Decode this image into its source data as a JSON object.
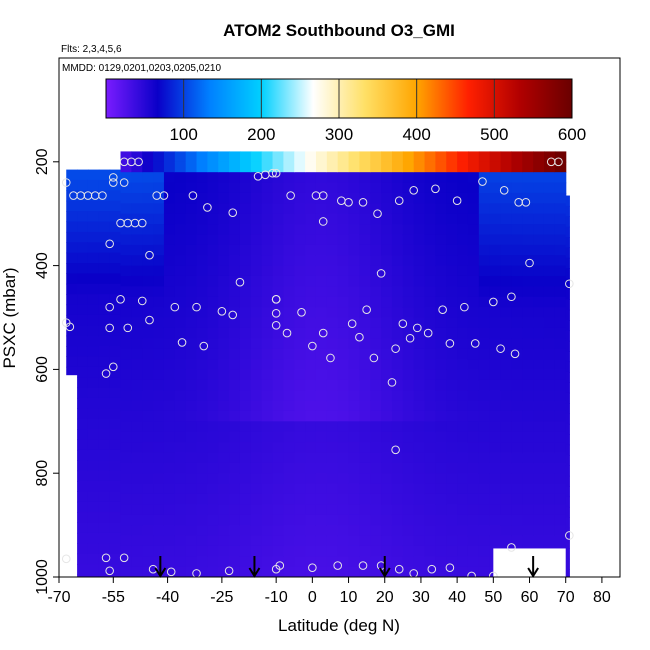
{
  "chart_data": {
    "type": "heatmap",
    "title": "ATOM2 Southbound O3_GMI",
    "subtitle_flights": "Flts: 2,3,4,5,6",
    "subtitle_dates": "MMDD: 0129,0201,0203,0205,0210",
    "xlabel": "Latitude (deg N)",
    "ylabel": "PSXC (mbar)",
    "xlim": [
      -70,
      85
    ],
    "ylim": [
      1000,
      0
    ],
    "x_ticks": [
      -70,
      -55,
      -40,
      -25,
      -10,
      0,
      10,
      20,
      30,
      40,
      50,
      60,
      70,
      80
    ],
    "x_tick_labels": [
      "-70",
      "-55",
      "-40",
      "-25",
      "-10",
      "0",
      "10",
      "20",
      "30",
      "40",
      "50",
      "60",
      "70",
      "80"
    ],
    "y_ticks": [
      200,
      400,
      600,
      800,
      1000
    ],
    "y_tick_labels": [
      "200",
      "400",
      "600",
      "800",
      "1000"
    ],
    "colorbar": {
      "min": 0,
      "max": 600,
      "ticks": [
        100,
        200,
        300,
        400,
        500,
        600
      ],
      "tick_labels": [
        "100",
        "200",
        "300",
        "400",
        "500",
        "600"
      ],
      "colors": [
        "#7a1cff",
        "#0a00c8",
        "#0080ff",
        "#00d0ff",
        "#ffffff",
        "#ffe066",
        "#ffa500",
        "#ff2000",
        "#b00000",
        "#6a0000"
      ]
    },
    "curtain": {
      "lat_start": -68,
      "lat_end": 71,
      "p_top": 180,
      "p_bottom": 1000,
      "grid_lat_step": 3,
      "grid_p_step": 20
    },
    "flight_arrows_lat": [
      -42,
      -16,
      20,
      61
    ],
    "observation_points": [
      {
        "lat": -68,
        "p": 240
      },
      {
        "lat": -66,
        "p": 265
      },
      {
        "lat": -64,
        "p": 265
      },
      {
        "lat": -62,
        "p": 265
      },
      {
        "lat": -60,
        "p": 265
      },
      {
        "lat": -58,
        "p": 265
      },
      {
        "lat": -55,
        "p": 240
      },
      {
        "lat": -55,
        "p": 230
      },
      {
        "lat": -52,
        "p": 200
      },
      {
        "lat": -50,
        "p": 200
      },
      {
        "lat": -48,
        "p": 200
      },
      {
        "lat": -52,
        "p": 240
      },
      {
        "lat": -43,
        "p": 265
      },
      {
        "lat": -41,
        "p": 265
      },
      {
        "lat": -33,
        "p": 265
      },
      {
        "lat": -29,
        "p": 288
      },
      {
        "lat": -22,
        "p": 298
      },
      {
        "lat": -15,
        "p": 228
      },
      {
        "lat": -13,
        "p": 225
      },
      {
        "lat": -11,
        "p": 222
      },
      {
        "lat": -10,
        "p": 222
      },
      {
        "lat": -6,
        "p": 265
      },
      {
        "lat": 1,
        "p": 265
      },
      {
        "lat": 3,
        "p": 265
      },
      {
        "lat": 3,
        "p": 315
      },
      {
        "lat": 8,
        "p": 275
      },
      {
        "lat": 10,
        "p": 278
      },
      {
        "lat": 14,
        "p": 278
      },
      {
        "lat": 18,
        "p": 300
      },
      {
        "lat": 24,
        "p": 275
      },
      {
        "lat": 28,
        "p": 255
      },
      {
        "lat": 34,
        "p": 252
      },
      {
        "lat": 40,
        "p": 275
      },
      {
        "lat": 47,
        "p": 238
      },
      {
        "lat": 53,
        "p": 255
      },
      {
        "lat": 57,
        "p": 278
      },
      {
        "lat": 59,
        "p": 278
      },
      {
        "lat": 66,
        "p": 200
      },
      {
        "lat": 68,
        "p": 200
      },
      {
        "lat": -56,
        "p": 358
      },
      {
        "lat": -53,
        "p": 318
      },
      {
        "lat": -51,
        "p": 318
      },
      {
        "lat": -49,
        "p": 318
      },
      {
        "lat": -47,
        "p": 318
      },
      {
        "lat": -45,
        "p": 380
      },
      {
        "lat": -20,
        "p": 432
      },
      {
        "lat": 19,
        "p": 415
      },
      {
        "lat": 60,
        "p": 395
      },
      {
        "lat": 71,
        "p": 435
      },
      {
        "lat": -68,
        "p": 510
      },
      {
        "lat": -67,
        "p": 518
      },
      {
        "lat": -56,
        "p": 480
      },
      {
        "lat": -53,
        "p": 465
      },
      {
        "lat": -56,
        "p": 520
      },
      {
        "lat": -51,
        "p": 520
      },
      {
        "lat": -47,
        "p": 468
      },
      {
        "lat": -45,
        "p": 505
      },
      {
        "lat": -38,
        "p": 480
      },
      {
        "lat": -36,
        "p": 548
      },
      {
        "lat": -32,
        "p": 480
      },
      {
        "lat": -30,
        "p": 555
      },
      {
        "lat": -25,
        "p": 488
      },
      {
        "lat": -22,
        "p": 495
      },
      {
        "lat": -10,
        "p": 465
      },
      {
        "lat": -10,
        "p": 465
      },
      {
        "lat": -10,
        "p": 492
      },
      {
        "lat": -10,
        "p": 515
      },
      {
        "lat": -7,
        "p": 530
      },
      {
        "lat": -3,
        "p": 490
      },
      {
        "lat": 0,
        "p": 555
      },
      {
        "lat": 3,
        "p": 530
      },
      {
        "lat": 5,
        "p": 578
      },
      {
        "lat": 11,
        "p": 512
      },
      {
        "lat": 13,
        "p": 538
      },
      {
        "lat": 15,
        "p": 485
      },
      {
        "lat": 17,
        "p": 578
      },
      {
        "lat": 23,
        "p": 560
      },
      {
        "lat": 25,
        "p": 512
      },
      {
        "lat": 27,
        "p": 540
      },
      {
        "lat": 29,
        "p": 520
      },
      {
        "lat": 32,
        "p": 530
      },
      {
        "lat": 36,
        "p": 485
      },
      {
        "lat": 38,
        "p": 550
      },
      {
        "lat": 42,
        "p": 480
      },
      {
        "lat": 45,
        "p": 550
      },
      {
        "lat": 50,
        "p": 470
      },
      {
        "lat": 52,
        "p": 560
      },
      {
        "lat": 55,
        "p": 460
      },
      {
        "lat": 56,
        "p": 570
      },
      {
        "lat": -57,
        "p": 608
      },
      {
        "lat": -55,
        "p": 595
      },
      {
        "lat": 22,
        "p": 625
      },
      {
        "lat": 23,
        "p": 755
      },
      {
        "lat": 55,
        "p": 943
      },
      {
        "lat": 71,
        "p": 920
      },
      {
        "lat": -68,
        "p": 965
      },
      {
        "lat": -57,
        "p": 963
      },
      {
        "lat": -56,
        "p": 988
      },
      {
        "lat": -52,
        "p": 963
      },
      {
        "lat": -44,
        "p": 985
      },
      {
        "lat": -39,
        "p": 990
      },
      {
        "lat": -32,
        "p": 993
      },
      {
        "lat": -23,
        "p": 988
      },
      {
        "lat": -10,
        "p": 985
      },
      {
        "lat": -9,
        "p": 978
      },
      {
        "lat": 0,
        "p": 982
      },
      {
        "lat": 7,
        "p": 978
      },
      {
        "lat": 14,
        "p": 978
      },
      {
        "lat": 19,
        "p": 978
      },
      {
        "lat": 24,
        "p": 985
      },
      {
        "lat": 28,
        "p": 993
      },
      {
        "lat": 33,
        "p": 985
      },
      {
        "lat": 38,
        "p": 982
      },
      {
        "lat": 44,
        "p": 998
      },
      {
        "lat": 50,
        "p": 998
      }
    ]
  }
}
